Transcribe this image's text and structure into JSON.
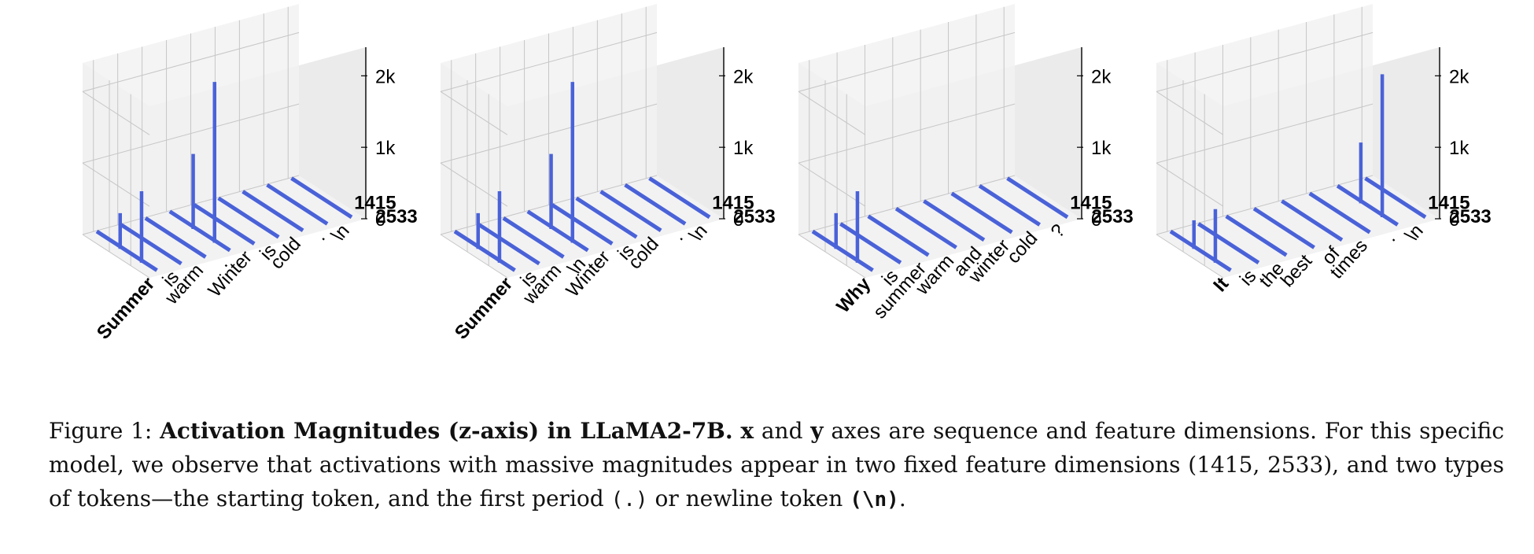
{
  "figure": {
    "caption": {
      "label": "Figure 1:",
      "bold_title": "Activation Magnitudes (z-axis) in LLaMA2-7B.",
      "x_var": "x",
      "and_word": "and",
      "y_var": "y",
      "after_axes": "axes are sequence and feature dimensions. For this specific model, we observe that activations with massive magnitudes appear in two fixed feature dimensions (1415, 2533), and two types of tokens—the starting token, and the first period",
      "period_code": "(.)",
      "or_text": "or newline token",
      "newline_code": "(\\n)",
      "end": "."
    }
  },
  "chart_data": [
    {
      "type": "bar3d",
      "title": "",
      "xlabel": "",
      "ylabel": "",
      "zlabel": "",
      "tokens": [
        "Summer",
        "is",
        "warm",
        ".",
        "Winter",
        "is",
        "cold",
        ".",
        "\\n"
      ],
      "y_ticks": [
        "2533",
        "1415"
      ],
      "z_ticks": [
        "0",
        "1k",
        "2k"
      ],
      "zlim": [
        0,
        2400
      ],
      "spikes": [
        {
          "token_index": 0,
          "feature": "1415",
          "value": 500
        },
        {
          "token_index": 0,
          "feature": "2533",
          "value": 1000
        },
        {
          "token_index": 3,
          "feature": "1415",
          "value": 1050
        },
        {
          "token_index": 3,
          "feature": "2533",
          "value": 2250
        }
      ]
    },
    {
      "type": "bar3d",
      "title": "",
      "xlabel": "",
      "ylabel": "",
      "zlabel": "",
      "tokens": [
        "Summer",
        "is",
        "warm",
        "\\n",
        "Winter",
        "is",
        "cold",
        ".",
        "\\n"
      ],
      "y_ticks": [
        "2533",
        "1415"
      ],
      "z_ticks": [
        "0",
        "1k",
        "2k"
      ],
      "zlim": [
        0,
        2400
      ],
      "spikes": [
        {
          "token_index": 0,
          "feature": "1415",
          "value": 500
        },
        {
          "token_index": 0,
          "feature": "2533",
          "value": 1000
        },
        {
          "token_index": 3,
          "feature": "1415",
          "value": 1050
        },
        {
          "token_index": 3,
          "feature": "2533",
          "value": 2250
        }
      ]
    },
    {
      "type": "bar3d",
      "title": "",
      "xlabel": "",
      "ylabel": "",
      "zlabel": "",
      "tokens": [
        "Why",
        "is",
        "summer",
        "warm",
        "and",
        "winter",
        "cold",
        "?"
      ],
      "y_ticks": [
        "2533",
        "1415"
      ],
      "z_ticks": [
        "0",
        "1k",
        "2k"
      ],
      "zlim": [
        0,
        2400
      ],
      "spikes": [
        {
          "token_index": 0,
          "feature": "1415",
          "value": 500
        },
        {
          "token_index": 0,
          "feature": "2533",
          "value": 1000
        }
      ]
    },
    {
      "type": "bar3d",
      "title": "",
      "xlabel": "",
      "ylabel": "",
      "zlabel": "",
      "tokens": [
        "It",
        "is",
        "the",
        "best",
        "of",
        "times",
        ".",
        "\\n"
      ],
      "y_ticks": [
        "2533",
        "1415"
      ],
      "z_ticks": [
        "0",
        "1k",
        "2k"
      ],
      "zlim": [
        0,
        2400
      ],
      "spikes": [
        {
          "token_index": 0,
          "feature": "1415",
          "value": 400
        },
        {
          "token_index": 0,
          "feature": "2533",
          "value": 750
        },
        {
          "token_index": 6,
          "feature": "1415",
          "value": 850
        },
        {
          "token_index": 6,
          "feature": "2533",
          "value": 2000
        }
      ]
    }
  ],
  "colors": {
    "bar": "#4a62d8",
    "pane": "#f2f2f2",
    "pane_side": "#ebebeb",
    "grid": "#c6c6c6",
    "text": "#000000"
  }
}
